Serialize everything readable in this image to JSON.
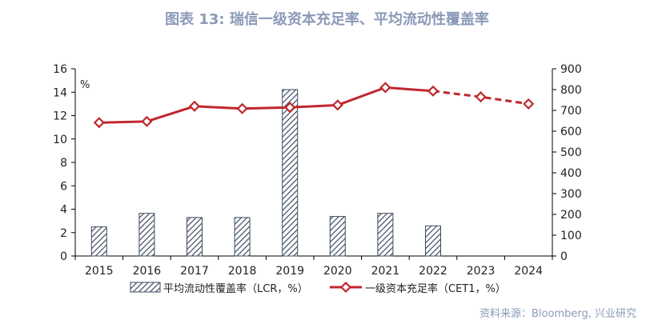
{
  "title": "图表 13: 瑞信一级资本充足率、平均流动性覆盖率",
  "source": "资料来源：Bloomberg, 兴业研究",
  "chart_data": {
    "type": "bar+line",
    "categories": [
      "2015",
      "2016",
      "2017",
      "2018",
      "2019",
      "2020",
      "2021",
      "2022",
      "2023",
      "2024"
    ],
    "left_axis": {
      "unit_label": "%",
      "ylim": [
        0,
        16
      ],
      "ticks": [
        "0",
        "2",
        "4",
        "6",
        "8",
        "10",
        "12",
        "14",
        "16"
      ]
    },
    "right_axis": {
      "ylim": [
        0,
        900
      ],
      "ticks": [
        "0",
        "100",
        "200",
        "300",
        "400",
        "500",
        "600",
        "700",
        "800",
        "900"
      ]
    },
    "series": [
      {
        "name": "平均流动性覆盖率（LCR，%）",
        "type": "bar",
        "axis": "right",
        "pattern": "diagonal-hatch",
        "color": "#3d4a60",
        "values": [
          140,
          205,
          185,
          185,
          800,
          190,
          205,
          145,
          null,
          null
        ]
      },
      {
        "name": "一级资本充足率（CET1，%）",
        "type": "line",
        "axis": "left",
        "color": "#c0272d",
        "marker": "diamond",
        "values": [
          11.4,
          11.5,
          12.8,
          12.6,
          12.7,
          12.9,
          14.4,
          14.1,
          13.6,
          13.0
        ],
        "dashed_from_category": "2022"
      }
    ],
    "grid": false,
    "legend_position": "bottom"
  }
}
